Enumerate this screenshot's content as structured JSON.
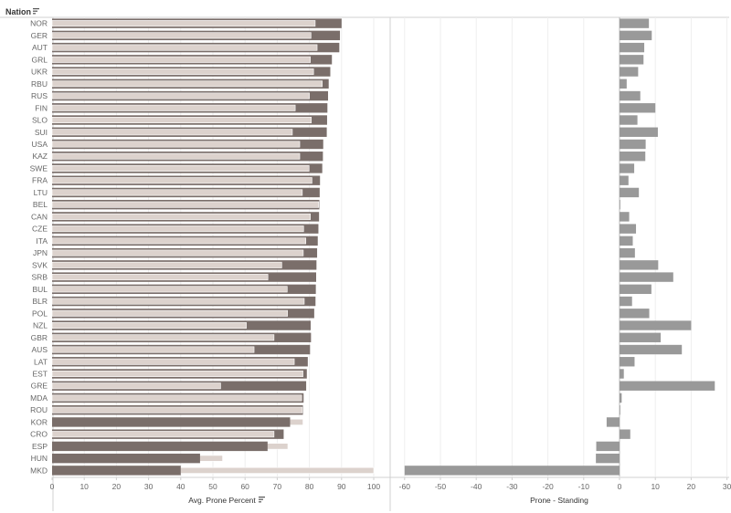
{
  "header": {
    "nation_label": "Nation"
  },
  "chart_data": [
    {
      "type": "bar",
      "orientation": "horizontal",
      "xlabel": "Avg. Prone Percent",
      "xlim": [
        0,
        100
      ],
      "xticks": [
        0,
        10,
        20,
        30,
        40,
        50,
        60,
        70,
        80,
        90,
        100
      ],
      "grid": true,
      "categories": [
        "NOR",
        "GER",
        "AUT",
        "GRL",
        "UKR",
        "RBU",
        "RUS",
        "FIN",
        "SLO",
        "SUI",
        "USA",
        "KAZ",
        "SWE",
        "FRA",
        "LTU",
        "BEL",
        "CAN",
        "CZE",
        "ITA",
        "JPN",
        "SVK",
        "SRB",
        "BUL",
        "BLR",
        "POL",
        "NZL",
        "GBR",
        "AUS",
        "LAT",
        "EST",
        "GRE",
        "MDA",
        "ROU",
        "KOR",
        "CRO",
        "ESP",
        "HUN",
        "MKD"
      ],
      "series": [
        {
          "role": "prone",
          "values": [
            90,
            89.5,
            89.3,
            87,
            86.5,
            86,
            85.8,
            85.6,
            85.5,
            85.4,
            84.3,
            84.2,
            84,
            83.3,
            83.2,
            83.1,
            83,
            82.8,
            82.6,
            82.4,
            82.2,
            82.1,
            82,
            81.9,
            81.5,
            80.4,
            80.5,
            80.2,
            79.5,
            79.2,
            79,
            78.2,
            78,
            74,
            72,
            67,
            46,
            40
          ]
        },
        {
          "role": "standing",
          "values": [
            81.8,
            80.5,
            82.4,
            80.3,
            81.3,
            84,
            80,
            75.6,
            80.6,
            74.7,
            77,
            77,
            79.9,
            80.8,
            77.8,
            82.9,
            80.3,
            78.2,
            78.9,
            78.1,
            71.4,
            67.1,
            73.1,
            78.4,
            73.2,
            60.4,
            69,
            62.8,
            75.3,
            78,
            52.4,
            77.6,
            77.8,
            78,
            69,
            73.3,
            53,
            100
          ]
        }
      ],
      "colors": {
        "prone": "#7a6e6a",
        "standing": "#dcd2cd",
        "outline": "#ffffff"
      }
    },
    {
      "type": "bar",
      "orientation": "horizontal",
      "xlabel": "Prone - Standing",
      "xlim": [
        -62,
        31
      ],
      "xticks": [
        -60,
        -50,
        -40,
        -30,
        -20,
        -10,
        0,
        10,
        20,
        30
      ],
      "grid": true,
      "categories": [
        "NOR",
        "GER",
        "AUT",
        "GRL",
        "UKR",
        "RBU",
        "RUS",
        "FIN",
        "SLO",
        "SUI",
        "USA",
        "KAZ",
        "SWE",
        "FRA",
        "LTU",
        "BEL",
        "CAN",
        "CZE",
        "ITA",
        "JPN",
        "SVK",
        "SRB",
        "BUL",
        "BLR",
        "POL",
        "NZL",
        "GBR",
        "AUS",
        "LAT",
        "EST",
        "GRE",
        "MDA",
        "ROU",
        "KOR",
        "CRO",
        "ESP",
        "HUN",
        "MKD"
      ],
      "values": [
        8.2,
        9,
        6.9,
        6.7,
        5.2,
        2,
        5.8,
        10,
        5,
        10.7,
        7.3,
        7.2,
        4.1,
        2.5,
        5.4,
        0.2,
        2.7,
        4.6,
        3.7,
        4.3,
        10.8,
        15,
        8.9,
        3.5,
        8.3,
        20,
        11.5,
        17.4,
        4.2,
        1.2,
        26.6,
        0.6,
        0.2,
        -3.6,
        3,
        -6.5,
        -6.6,
        -60
      ]
    }
  ]
}
